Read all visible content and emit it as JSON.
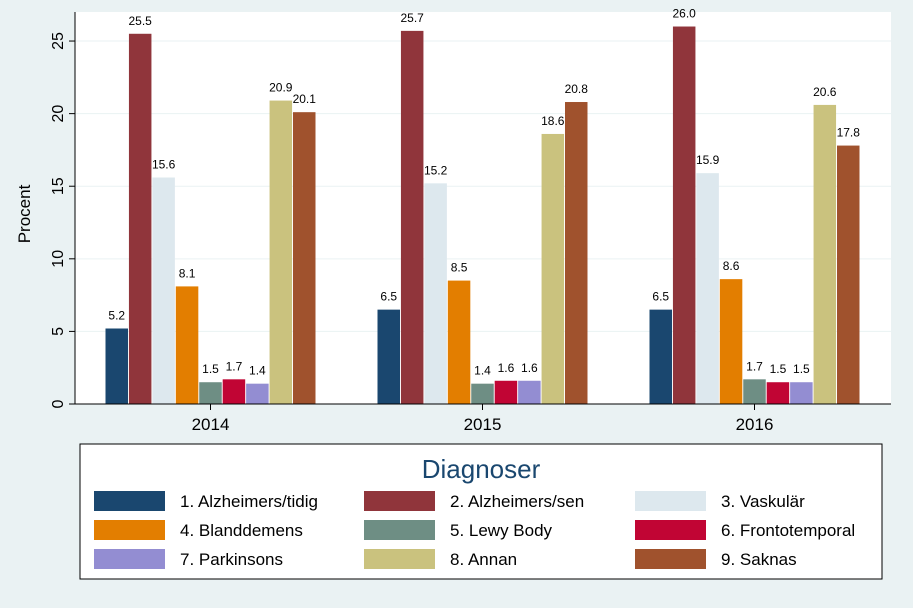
{
  "chart_data": {
    "type": "bar",
    "title": "",
    "xlabel": "",
    "ylabel": "Procent",
    "ylim": [
      0,
      27
    ],
    "yticks": [
      0,
      5,
      10,
      15,
      20,
      25
    ],
    "categories": [
      "2014",
      "2015",
      "2016"
    ],
    "series": [
      {
        "name": "1. Alzheimers/tidig",
        "color": "#1a476f",
        "values": [
          5.2,
          6.5,
          6.5
        ],
        "labels": [
          "5.2",
          "6.5",
          "6.5"
        ]
      },
      {
        "name": "2. Alzheimers/sen",
        "color": "#90353b",
        "values": [
          25.5,
          25.7,
          26.0
        ],
        "labels": [
          "25.5",
          "25.7",
          "26.0"
        ]
      },
      {
        "name": "3. Vaskulär",
        "color": "#dde8ee",
        "values": [
          15.6,
          15.2,
          15.9
        ],
        "labels": [
          "15.6",
          "15.2",
          "15.9"
        ]
      },
      {
        "name": "4. Blanddemens",
        "color": "#e37e00",
        "values": [
          8.1,
          8.5,
          8.6
        ],
        "labels": [
          "8.1",
          "8.5",
          "8.6"
        ]
      },
      {
        "name": "5. Lewy Body",
        "color": "#6e8e84",
        "values": [
          1.5,
          1.4,
          1.7
        ],
        "labels": [
          "1.5",
          "1.4",
          "1.7"
        ]
      },
      {
        "name": "6. Frontotemporal",
        "color": "#c10534",
        "values": [
          1.7,
          1.6,
          1.5
        ],
        "labels": [
          "1.7",
          "1.6",
          "1.5"
        ]
      },
      {
        "name": "7. Parkinsons",
        "color": "#938dd2",
        "values": [
          1.4,
          1.6,
          1.5
        ],
        "labels": [
          "1.4",
          "1.6",
          "1.5"
        ]
      },
      {
        "name": "8. Annan",
        "color": "#cac27e",
        "values": [
          20.9,
          18.6,
          20.6
        ],
        "labels": [
          "20.9",
          "18.6",
          "20.6"
        ]
      },
      {
        "name": "9. Saknas",
        "color": "#a0522d",
        "values": [
          20.1,
          20.8,
          17.8
        ],
        "labels": [
          "20.1",
          "20.8",
          "17.8"
        ]
      }
    ],
    "grid": true,
    "legend": {
      "title": "Diagnoser",
      "position": "bottom",
      "columns": 3
    }
  }
}
